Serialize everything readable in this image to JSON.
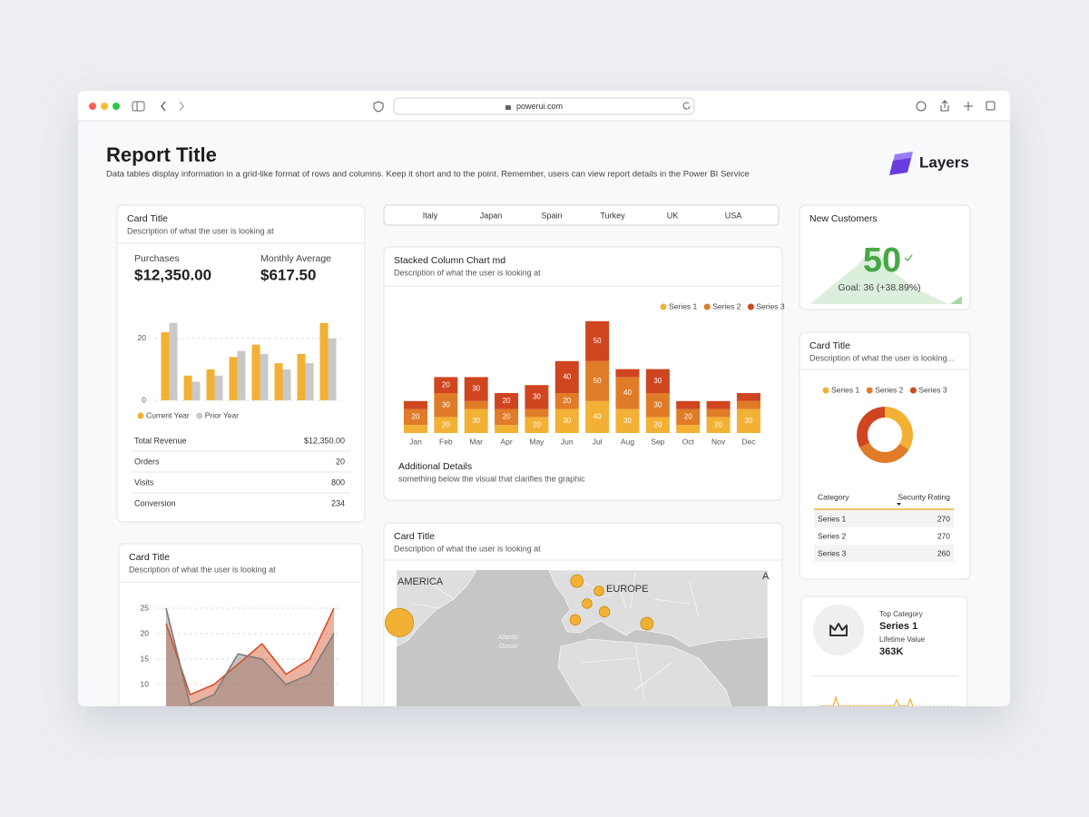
{
  "browser": {
    "url": "powerui.com"
  },
  "header": {
    "title": "Report Title",
    "subtitle": "Data tables display information in a grid-like format of rows and columns. Keep it short and to the point. Remember, users can view report details in the Power BI Service",
    "brand": "Layers"
  },
  "filters": [
    "Italy",
    "Japan",
    "Spain",
    "Turkey",
    "UK",
    "USA"
  ],
  "summary_card": {
    "title": "Card Title",
    "description": "Description of what the user is looking at",
    "metrics": [
      {
        "label": "Purchases",
        "value": "$12,350.00"
      },
      {
        "label": "Monthly Average",
        "value": "$617.50"
      }
    ],
    "chart_data": {
      "type": "bar",
      "series": [
        {
          "name": "Current Year",
          "color": "#f2b134",
          "values": [
            22,
            8,
            10,
            14,
            18,
            12,
            15,
            25
          ]
        },
        {
          "name": "Prior Year",
          "color": "#c9c9c9",
          "values": [
            25,
            6,
            8,
            16,
            15,
            10,
            12,
            20
          ]
        }
      ],
      "ylim": [
        0,
        27
      ],
      "yticks": [
        0,
        20
      ],
      "grid": true,
      "legend": "bottom-left"
    },
    "table": {
      "rows": [
        [
          "Total Revenue",
          "$12,350.00"
        ],
        [
          "Orders",
          "20"
        ],
        [
          "Visits",
          "800"
        ],
        [
          "Conversion",
          "234"
        ]
      ]
    }
  },
  "stacked_card": {
    "title": "Stacked Column Chart md",
    "description": "Description of what the user is looking at",
    "chart_data": {
      "type": "stacked_bar",
      "categories": [
        "Jan",
        "Feb",
        "Mar",
        "Apr",
        "May",
        "Jun",
        "Jul",
        "Aug",
        "Sep",
        "Oct",
        "Nov",
        "Dec"
      ],
      "series": [
        {
          "name": "Series 1",
          "color": "#f2b134",
          "values": [
            10,
            20,
            30,
            10,
            20,
            30,
            40,
            30,
            20,
            10,
            20,
            30
          ]
        },
        {
          "name": "Series 2",
          "color": "#e07b27",
          "values": [
            20,
            30,
            10,
            20,
            10,
            20,
            50,
            40,
            30,
            20,
            10,
            10
          ]
        },
        {
          "name": "Series 3",
          "color": "#cf4520",
          "values": [
            10,
            20,
            30,
            20,
            30,
            40,
            50,
            10,
            30,
            10,
            10,
            10
          ]
        }
      ],
      "ylim": [
        0,
        150
      ],
      "legend": "top-right"
    },
    "details_title": "Additional Details",
    "details_text": "something below the visual that clarifies the graphic"
  },
  "new_customers": {
    "title": "New Customers",
    "value": "50",
    "goal": "Goal: 36 (+38.89%)"
  },
  "donut_card": {
    "title": "Card Title",
    "description": "Description of what the user is looking...",
    "chart_data": {
      "type": "donut",
      "categories": [
        "Series 1",
        "Series 2",
        "Series 3"
      ],
      "values": [
        270,
        270,
        260
      ],
      "colors": [
        "#f2b134",
        "#e07b27",
        "#cf4520"
      ],
      "legend": "top"
    },
    "table": {
      "columns": [
        "Category",
        "Security Rating"
      ]
    }
  },
  "line_card": {
    "title": "Card Title",
    "description": "Description of what the user is looking at",
    "chart_data": {
      "type": "area",
      "series": [
        {
          "color": "#d8512a",
          "values": [
            22,
            8,
            10,
            14,
            18,
            12,
            15,
            25
          ]
        },
        {
          "color": "#7d7d7d",
          "values": [
            25,
            6,
            8,
            16,
            15,
            10,
            12,
            20
          ]
        }
      ],
      "ylim": [
        0,
        27
      ],
      "yticks": [
        10,
        15,
        20,
        25
      ],
      "grid": true
    }
  },
  "map_card": {
    "title": "Card Title",
    "description": "Description of what the user is looking at",
    "region_labels": [
      "AMERICA",
      "EUROPE",
      "A"
    ],
    "ocean_label": [
      "Atlantic",
      "Ocean"
    ],
    "chart_data": {
      "type": "bubble_map",
      "color": "#f2b134",
      "points": {
        "lon": [
          -84.1,
          -0.1,
          10.3,
          4.7,
          -0.9,
          12.9,
          33
        ],
        "lat": [
          39.3,
          51.5,
          48.6,
          44.9,
          40.1,
          42.5,
          39
        ],
        "values": [
          50,
          10,
          6,
          6,
          7,
          7,
          10
        ]
      }
    }
  },
  "top_category": {
    "label": "Top Category",
    "value": "Series 1",
    "metric_label": "Lifetime Value",
    "metric_value": "363K"
  }
}
